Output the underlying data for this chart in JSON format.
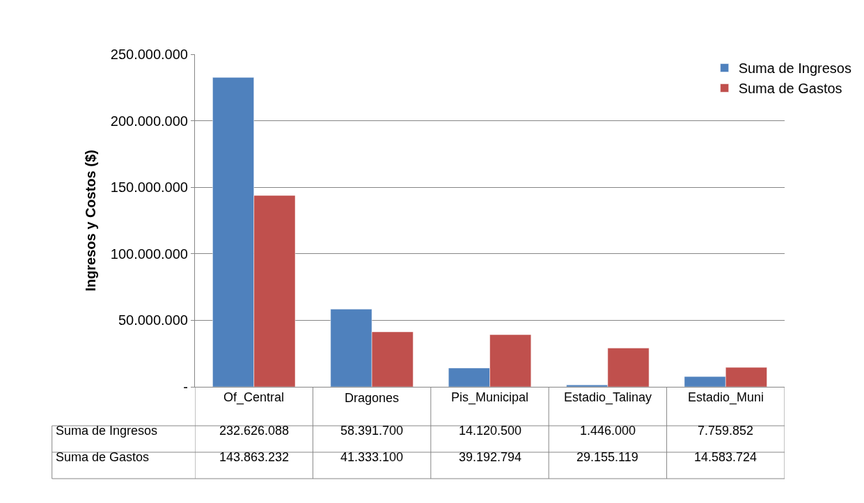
{
  "chart_data": {
    "type": "bar",
    "ylabel": "Ingresos y Costos ($)",
    "categories": [
      "Of_Central",
      "Dragones",
      "Pis_Municipal",
      "Estadio_Talinay",
      "Estadio_Muni"
    ],
    "series": [
      {
        "name": "Suma de Ingresos",
        "color": "#4f81bd",
        "values": [
          232626088,
          58391700,
          14120500,
          1446000,
          7759852
        ],
        "value_labels": [
          "232.626.088",
          "58.391.700",
          "14.120.500",
          "1.446.000",
          "7.759.852"
        ]
      },
      {
        "name": "Suma de Gastos",
        "color": "#c0504d",
        "values": [
          143863232,
          41333100,
          39192794,
          29155119,
          14583724
        ],
        "value_labels": [
          "143.863.232",
          "41.333.100",
          "39.192.794",
          "29.155.119",
          "14.583.724"
        ]
      }
    ],
    "ylim": [
      0,
      250000000
    ],
    "yticks": [
      {
        "value": 0,
        "label": "-"
      },
      {
        "value": 50000000,
        "label": "50.000.000"
      },
      {
        "value": 100000000,
        "label": "100.000.000"
      },
      {
        "value": 150000000,
        "label": "150.000.000"
      },
      {
        "value": 200000000,
        "label": "200.000.000"
      },
      {
        "value": 250000000,
        "label": "250.000.000"
      }
    ],
    "grid": "y",
    "legend": "top right"
  }
}
